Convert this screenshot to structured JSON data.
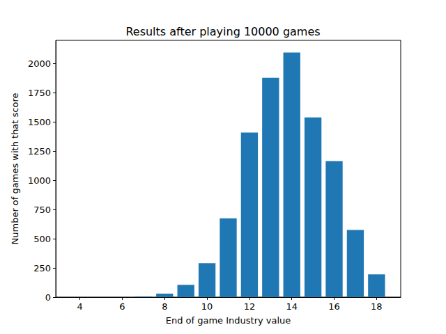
{
  "chart_data": {
    "type": "bar",
    "title": "Results after playing 10000 games",
    "x_label": "End of game Industry value",
    "y_label": "Number of games with that score",
    "x": [
      4,
      5,
      6,
      7,
      8,
      9,
      10,
      11,
      12,
      13,
      14,
      15,
      16,
      17,
      18
    ],
    "values": [
      0,
      0,
      0,
      5,
      30,
      105,
      290,
      675,
      1410,
      1880,
      2095,
      1540,
      1165,
      575,
      195
    ],
    "color": "#1f77b4",
    "xlim": [
      2.86,
      19.14
    ],
    "xticks": [
      4,
      6,
      8,
      10,
      12,
      14,
      16,
      18
    ],
    "ylim": [
      0,
      2200
    ],
    "yticks": [
      0,
      250,
      500,
      750,
      1000,
      1250,
      1500,
      1750,
      2000
    ],
    "grid": false
  }
}
